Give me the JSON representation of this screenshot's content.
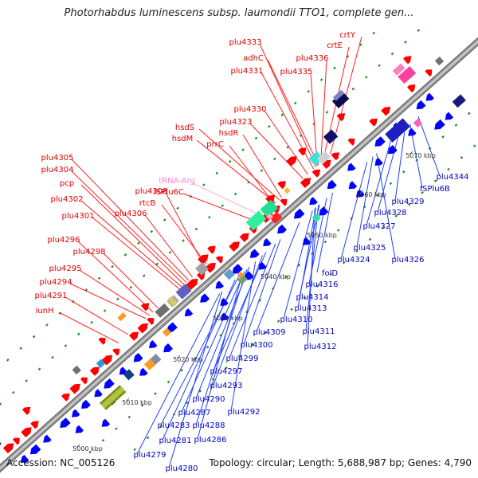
{
  "title": "Photorhabdus luminescens subsp. laumondii TTO1, complete gen...",
  "accession": "Accession: NC_005126",
  "summary": "Topology: circular; Length: 5,688,987 bp; Genes: 4,790",
  "colors": {
    "top_label": "#dd0000",
    "bottom_label": "#0000c0",
    "trna_label": "#ff88cc",
    "leader_top": "#ff2020",
    "leader_bottom": "#2040ff",
    "leader_trna": "#ffaadd",
    "top_gene": "#ff0000",
    "bottom_gene": "#0000ff",
    "backbone": "#999999",
    "dot": "#228822"
  },
  "scale_ticks": [
    "5000 kbp",
    "5010 kbp",
    "5020 kbp",
    "5030 kbp",
    "5040 kbp",
    "5050 kbp",
    "5060 kbp",
    "5070 kbp"
  ],
  "top_labels": [
    "crtY",
    "plu4333",
    "crtE",
    "adhC",
    "plu4336",
    "plu4331",
    "plu4335",
    "plu4330",
    "plu4323",
    "hsdS",
    "hsdR",
    "hsdM",
    "prrC",
    "tRNA-Arg",
    "ISPlu6C",
    "plu4305",
    "plu4304",
    "pcp",
    "plu4308",
    "rtcB",
    "plu4302",
    "plu4306",
    "plu4301",
    "plu4296",
    "plu4298",
    "plu4295",
    "plu4294",
    "plu4291",
    "iunH"
  ],
  "bottom_labels": [
    "plu4344",
    "ISPlu6B",
    "plu4329",
    "plu4328",
    "plu4327",
    "plu4325",
    "plu4324",
    "plu4326",
    "folD",
    "plu4316",
    "plu4314",
    "plu4313",
    "plu4310",
    "plu4311",
    "plu4309",
    "plu4312",
    "plu4300",
    "plu4299",
    "plu4297",
    "plu4293",
    "plu4290",
    "plu4292",
    "plu4287",
    "plu4288",
    "plu4283",
    "plu4286",
    "plu4281",
    "plu4279",
    "plu4280"
  ]
}
